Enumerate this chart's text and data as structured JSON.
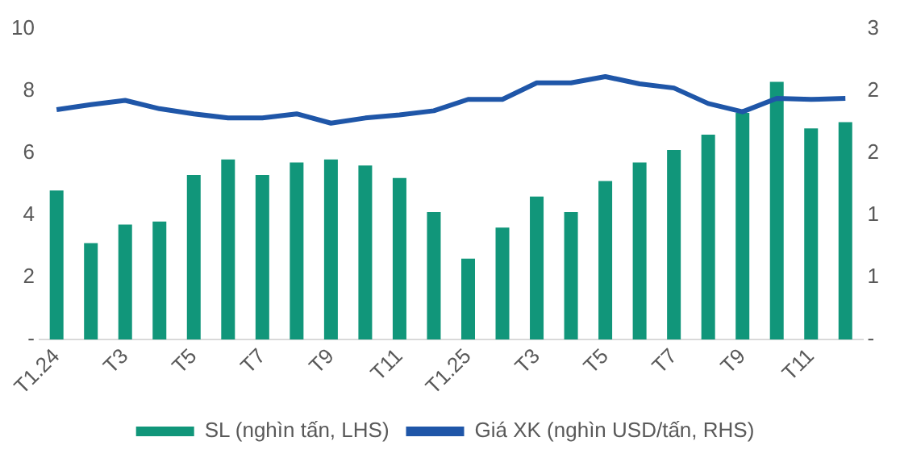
{
  "chart_data": {
    "type": "bar",
    "categories": [
      "T1.24",
      null,
      "T3",
      null,
      "T5",
      null,
      "T7",
      null,
      "T9",
      null,
      "T11",
      null,
      "T1.25",
      null,
      "T3",
      null,
      "T5",
      null,
      "T7",
      null,
      "T9",
      null,
      "T11",
      null
    ],
    "series": [
      {
        "name": "SL (nghìn tấn, LHS)",
        "color": "#11967a",
        "values": [
          4.8,
          3.1,
          3.7,
          3.8,
          5.3,
          5.8,
          5.3,
          5.7,
          5.8,
          5.6,
          5.2,
          4.1,
          2.6,
          3.6,
          4.6,
          4.1,
          5.1,
          5.7,
          6.1,
          6.6,
          7.3,
          8.3,
          6.8,
          7.0
        ]
      },
      {
        "name": "Giá XK (nghìn USD/tấn, RHS)",
        "type": "line",
        "axis": "y2",
        "color": "#1f56a8",
        "values": [
          2.22,
          2.27,
          2.31,
          2.23,
          2.18,
          2.14,
          2.14,
          2.18,
          2.09,
          2.14,
          2.17,
          2.21,
          2.32,
          2.32,
          2.48,
          2.48,
          2.54,
          2.47,
          2.43,
          2.28,
          2.2,
          2.33,
          2.32,
          2.33
        ]
      }
    ],
    "ylim": [
      0,
      10
    ],
    "yticks": [
      {
        "value": 0,
        "label": "-"
      },
      2,
      4,
      6,
      8,
      10
    ],
    "y2lim": [
      0,
      3
    ],
    "y2ticks": [
      {
        "value": 0,
        "label": "-"
      },
      {
        "value": 0.6,
        "label": "1"
      },
      {
        "value": 1.2,
        "label": "1"
      },
      {
        "value": 1.8,
        "label": "2"
      },
      {
        "value": 2.4,
        "label": "2"
      },
      3
    ],
    "grid": false,
    "legend": "bottom",
    "marker": "none"
  }
}
